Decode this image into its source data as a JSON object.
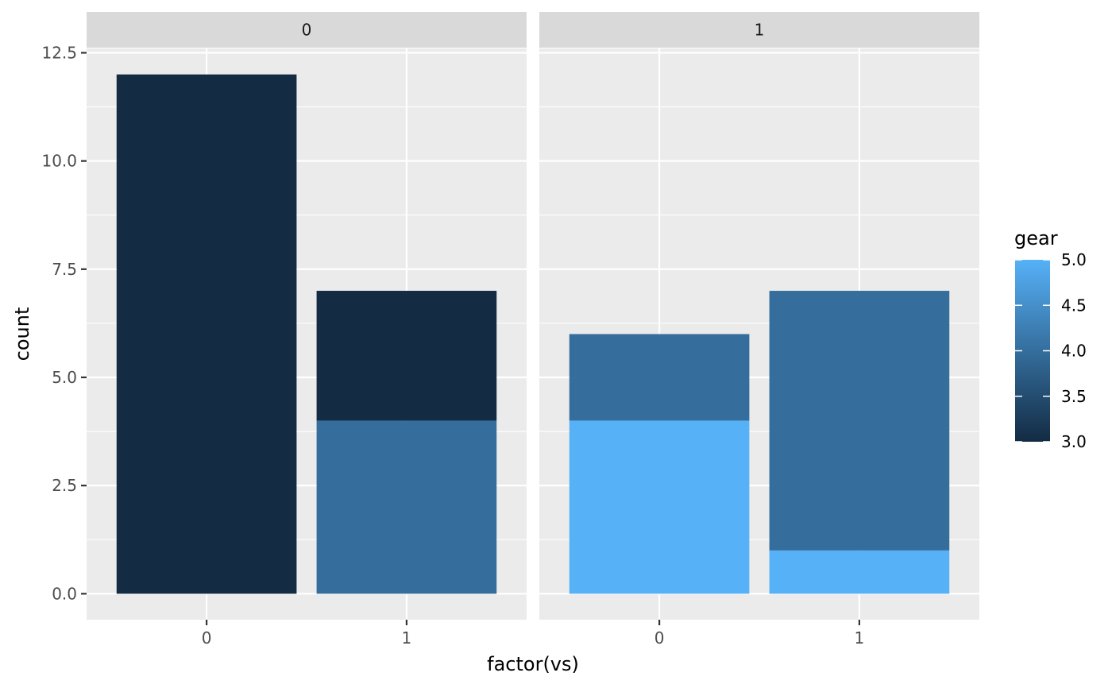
{
  "chart_data": {
    "type": "bar",
    "stacked": true,
    "xlabel": "factor(vs)",
    "ylabel": "count",
    "ylim": [
      -0.6,
      12.6
    ],
    "y_ticks": [
      0.0,
      2.5,
      5.0,
      7.5,
      10.0,
      12.5
    ],
    "y_tick_labels": [
      "0.0",
      "2.5",
      "5.0",
      "7.5",
      "10.0",
      "12.5"
    ],
    "categories": [
      "0",
      "1"
    ],
    "grid": true,
    "facets": [
      {
        "strip_label": "0",
        "bars": [
          {
            "category": "0",
            "segments": [
              {
                "gear": 3,
                "count": 12
              }
            ]
          },
          {
            "category": "1",
            "segments": [
              {
                "gear": 4,
                "count": 4
              },
              {
                "gear": 3,
                "count": 3
              }
            ]
          }
        ]
      },
      {
        "strip_label": "1",
        "bars": [
          {
            "category": "0",
            "segments": [
              {
                "gear": 5,
                "count": 4
              },
              {
                "gear": 4,
                "count": 2
              }
            ]
          },
          {
            "category": "1",
            "segments": [
              {
                "gear": 5,
                "count": 1
              },
              {
                "gear": 4,
                "count": 6
              }
            ]
          }
        ]
      }
    ],
    "legend": {
      "title": "gear",
      "type": "colorbar",
      "position": "right",
      "min": 3.0,
      "max": 5.0,
      "ticks": [
        3.0,
        3.5,
        4.0,
        4.5,
        5.0
      ],
      "tick_labels": [
        "3.0",
        "3.5",
        "4.0",
        "4.5",
        "5.0"
      ],
      "low_color": "#132B43",
      "high_color": "#56B1F7"
    },
    "colors": {
      "panel_bg": "#EBEBEB",
      "strip_bg": "#D9D9D9",
      "grid": "#FFFFFF"
    }
  }
}
